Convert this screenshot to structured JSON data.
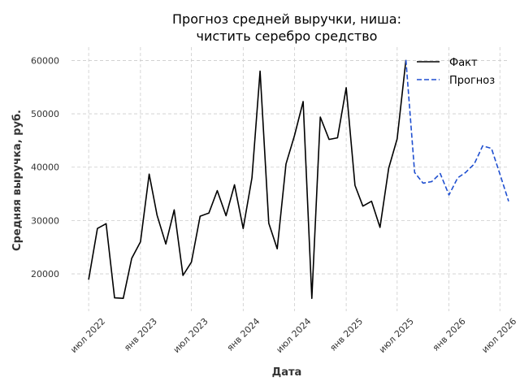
{
  "chart_data": {
    "type": "line",
    "title_lines": [
      "Прогноз средней выручки, ниша:",
      "чистить серебро средство"
    ],
    "xlabel": "Дата",
    "ylabel": "Средняя выручка, руб.",
    "ylim": [
      13000,
      62500
    ],
    "xlim": [
      "2022-05-01",
      "2026-08-01"
    ],
    "y_ticks": [
      20000,
      30000,
      40000,
      50000,
      60000
    ],
    "y_tick_labels": [
      "20000",
      "30000",
      "40000",
      "50000",
      "60000"
    ],
    "x_ticks": [
      {
        "date": "2022-07-01",
        "label": "июл 2022"
      },
      {
        "date": "2023-01-01",
        "label": "янв 2023"
      },
      {
        "date": "2023-07-01",
        "label": "июл 2023"
      },
      {
        "date": "2024-01-01",
        "label": "янв 2024"
      },
      {
        "date": "2024-07-01",
        "label": "июл 2024"
      },
      {
        "date": "2025-01-01",
        "label": "янв 2025"
      },
      {
        "date": "2025-07-01",
        "label": "июл 2025"
      },
      {
        "date": "2026-01-01",
        "label": "янв 2026"
      },
      {
        "date": "2026-07-01",
        "label": "июл 2026"
      }
    ],
    "grid": true,
    "legend_position": "top-right",
    "series": [
      {
        "name": "Факт",
        "color": "#000000",
        "style": "solid",
        "points": [
          {
            "x": "2022-07-01",
            "y": 18900
          },
          {
            "x": "2022-08-01",
            "y": 28500
          },
          {
            "x": "2022-09-01",
            "y": 29400
          },
          {
            "x": "2022-10-01",
            "y": 15500
          },
          {
            "x": "2022-11-01",
            "y": 15400
          },
          {
            "x": "2022-12-01",
            "y": 22900
          },
          {
            "x": "2023-01-01",
            "y": 26000
          },
          {
            "x": "2023-02-01",
            "y": 38700
          },
          {
            "x": "2023-03-01",
            "y": 31000
          },
          {
            "x": "2023-04-01",
            "y": 25600
          },
          {
            "x": "2023-05-01",
            "y": 32000
          },
          {
            "x": "2023-06-01",
            "y": 19700
          },
          {
            "x": "2023-07-01",
            "y": 22200
          },
          {
            "x": "2023-08-01",
            "y": 30800
          },
          {
            "x": "2023-09-01",
            "y": 31400
          },
          {
            "x": "2023-10-01",
            "y": 35600
          },
          {
            "x": "2023-11-01",
            "y": 30900
          },
          {
            "x": "2023-12-01",
            "y": 36700
          },
          {
            "x": "2024-01-01",
            "y": 28500
          },
          {
            "x": "2024-02-01",
            "y": 38000
          },
          {
            "x": "2024-03-01",
            "y": 58000
          },
          {
            "x": "2024-04-01",
            "y": 29500
          },
          {
            "x": "2024-05-01",
            "y": 24700
          },
          {
            "x": "2024-06-01",
            "y": 40600
          },
          {
            "x": "2024-07-01",
            "y": 45900
          },
          {
            "x": "2024-08-01",
            "y": 52300
          },
          {
            "x": "2024-09-01",
            "y": 15400
          },
          {
            "x": "2024-10-01",
            "y": 49400
          },
          {
            "x": "2024-11-01",
            "y": 45200
          },
          {
            "x": "2024-12-01",
            "y": 45500
          },
          {
            "x": "2025-01-01",
            "y": 54900
          },
          {
            "x": "2025-02-01",
            "y": 36600
          },
          {
            "x": "2025-03-01",
            "y": 32700
          },
          {
            "x": "2025-04-01",
            "y": 33600
          },
          {
            "x": "2025-05-01",
            "y": 28700
          },
          {
            "x": "2025-06-01",
            "y": 39800
          },
          {
            "x": "2025-07-01",
            "y": 45300
          },
          {
            "x": "2025-08-01",
            "y": 60100
          }
        ]
      },
      {
        "name": "Прогноз",
        "color": "#1f4fd0",
        "style": "dashed",
        "points": [
          {
            "x": "2025-08-01",
            "y": 60100
          },
          {
            "x": "2025-09-01",
            "y": 39000
          },
          {
            "x": "2025-10-01",
            "y": 37000
          },
          {
            "x": "2025-11-01",
            "y": 37300
          },
          {
            "x": "2025-12-01",
            "y": 38800
          },
          {
            "x": "2026-01-01",
            "y": 34800
          },
          {
            "x": "2026-02-01",
            "y": 38000
          },
          {
            "x": "2026-03-01",
            "y": 39000
          },
          {
            "x": "2026-04-01",
            "y": 40600
          },
          {
            "x": "2026-05-01",
            "y": 44000
          },
          {
            "x": "2026-06-01",
            "y": 43500
          },
          {
            "x": "2026-07-01",
            "y": 38700
          },
          {
            "x": "2026-08-01",
            "y": 33600
          }
        ]
      }
    ]
  }
}
